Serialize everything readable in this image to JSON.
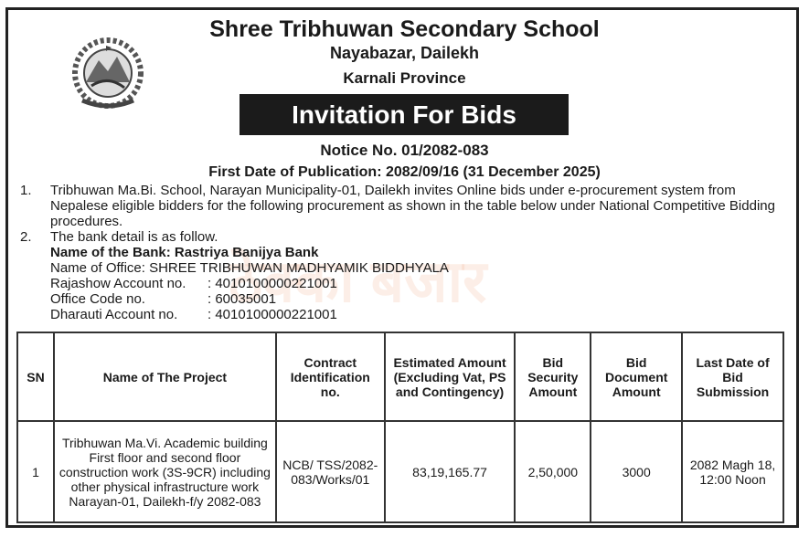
{
  "header": {
    "school": "Shree Tribhuwan Secondary School",
    "address": "Nayabazar, Dailekh",
    "province": "Karnali Province",
    "banner": "Invitation For  Bids",
    "notice": "Notice No. 01/2082-083",
    "publication": "First Date of Publication: 2082/09/16 (31 December  2025)",
    "emblem_icon": "nepal-government-emblem"
  },
  "body": {
    "items": [
      {
        "num": "1.",
        "text": "Tribhuwan Ma.Bi. School, Narayan Municipality-01, Dailekh invites Online bids under e-procurement system from Nepalese eligible bidders for the following procurement as shown in the table below under National Competitive Bidding procedures."
      },
      {
        "num": "2.",
        "text": "The bank detail is as follow."
      }
    ],
    "bank_name": "Name of the Bank: Rastriya Banijya Bank",
    "office_name": "Name of Office:  SHREE TRIBHUWAN MADHYAMIK BIDDHYALA",
    "details": [
      {
        "label": "Rajashow Account no.",
        "value": ": 4010100000221001"
      },
      {
        "label": "Office Code no.",
        "value": ": 60035001"
      },
      {
        "label": "Dharauti Account no.",
        "value": ": 4010100000221001"
      }
    ]
  },
  "watermark": "ठेक्का बजार",
  "table": {
    "headers": [
      "SN",
      "Name of The Project",
      "Contract Identification no.",
      "Estimated Amount (Excluding Vat, PS and Contingency)",
      "Bid Security Amount",
      "Bid Document Amount",
      "Last Date of Bid Submission"
    ],
    "rows": [
      [
        "1",
        "Tribhuwan Ma.Vi. Academic building First floor and second floor construction work (3S-9CR) including other physical infrastructure work Narayan-01, Dailekh-f/y 2082-083",
        "NCB/ TSS/2082-083/Works/01",
        "83,19,165.77",
        "2,50,000",
        "3000",
        "2082 Magh 18, 12:00 Noon"
      ]
    ]
  }
}
